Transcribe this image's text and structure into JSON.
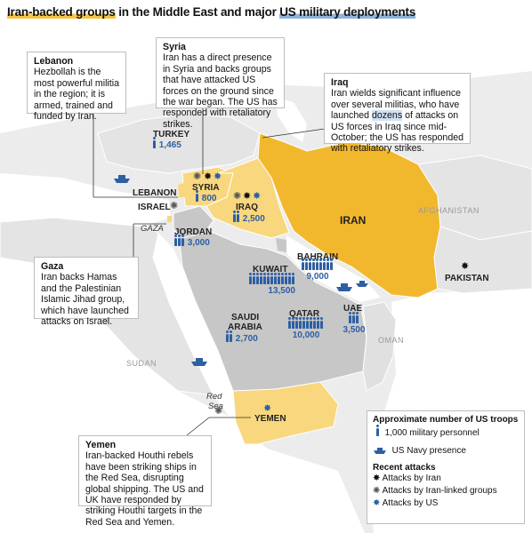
{
  "title": {
    "part1": "Iran-backed groups",
    "part2": " in the Middle East and major ",
    "part3": "US military deployments"
  },
  "callouts": {
    "lebanon": {
      "head": "Lebanon",
      "body": "Hezbollah is the most powerful militia in the region; it is armed, trained and funded by Iran."
    },
    "syria": {
      "head": "Syria",
      "body": "Iran has a direct presence in Syria and backs groups that have attacked US forces on the ground since the war began. The US has responded with retaliatory strikes."
    },
    "iraq": {
      "head": "Iraq",
      "body_a": "Iran wields significant influence over several militias, who have launched ",
      "body_hl": "dozens",
      "body_b": " of attacks on US forces in Iraq since mid-October; the US has responded with retaliatory strikes."
    },
    "gaza": {
      "head": "Gaza",
      "body": "Iran backs Hamas and the Palestinian Islamic Jihad group, which have launched attacks on Israel."
    },
    "yemen": {
      "head": "Yemen",
      "body": "Iran-backed Houthi rebels have been striking ships in the Red Sea, disrupting global shipping. The US and UK have responded by striking Houthi targets in the Red Sea and Yemen."
    }
  },
  "countries": {
    "turkey": {
      "name": "TURKEY",
      "troops": "1,465"
    },
    "syria": {
      "name": "SYRIA",
      "troops": "800"
    },
    "lebanon": {
      "name": "LEBANON"
    },
    "israel": {
      "name": "ISRAEL"
    },
    "iraq": {
      "name": "IRAQ",
      "troops": "2,500"
    },
    "iran": {
      "name": "IRAN"
    },
    "afghanistan": {
      "name": "AFGHANISTAN"
    },
    "jordan": {
      "name": "JORDAN",
      "troops": "3,000"
    },
    "kuwait": {
      "name": "KUWAIT",
      "troops": "13,500"
    },
    "bahrain": {
      "name": "BAHRAIN",
      "troops": "9,000"
    },
    "pakistan": {
      "name": "PAKISTAN"
    },
    "qatar": {
      "name": "QATAR",
      "troops": "10,000"
    },
    "uae": {
      "name": "UAE",
      "troops": "3,500"
    },
    "saudi": {
      "name1": "SAUDI",
      "name2": "ARABIA",
      "troops": "2,700"
    },
    "oman": {
      "name": "OMAN"
    },
    "sudan": {
      "name": "SUDAN"
    },
    "yemen": {
      "name": "YEMEN"
    },
    "gaza": {
      "name": "GAZA"
    }
  },
  "seas": {
    "red_sea_1": "Red",
    "red_sea_2": "Sea"
  },
  "legend": {
    "troops_header": "Approximate number of US troops",
    "troops_item": "1,000 military personnel",
    "navy_item": "US Navy presence",
    "attacks_header": "Recent attacks",
    "attack_iran": "Attacks by Iran",
    "attack_linked": "Attacks by Iran-linked groups",
    "attack_us": "Attacks by US"
  },
  "colors": {
    "iran": "#f2b82d",
    "iran_backed": "#f8d77e",
    "land": "#ececec",
    "us_deploy": "#c7c7c7",
    "water": "#ffffff",
    "us_blue": "#2e5fa3"
  },
  "icons": {
    "troop": "person-icon",
    "navy": "ship-icon",
    "attack_iran": "black-burst-icon",
    "attack_linked": "outline-burst-icon",
    "attack_us": "blue-burst-icon"
  }
}
